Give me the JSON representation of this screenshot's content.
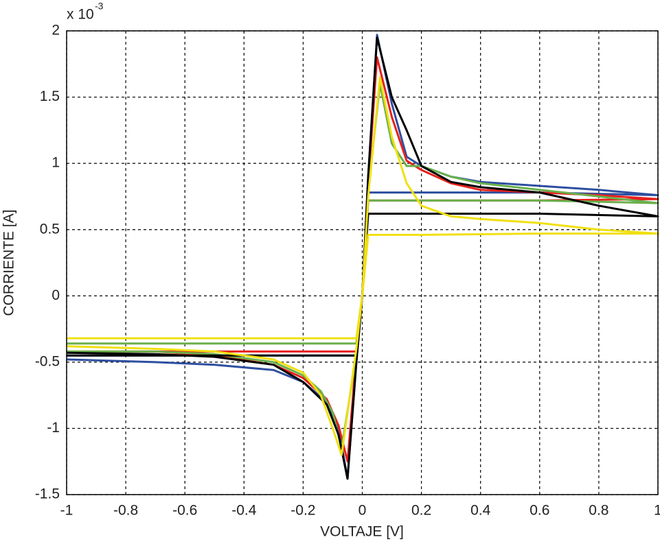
{
  "chart_data": {
    "type": "line",
    "xlabel": "VOLTAJE [V]",
    "ylabel": "CORRIENTE [A]",
    "y_multiplier": "x 10",
    "y_multiplier_exponent": "-3",
    "xlim": [
      -1,
      1
    ],
    "ylim": [
      -1.5,
      2
    ],
    "xticks": [
      -1,
      -0.8,
      -0.6,
      -0.4,
      -0.2,
      0,
      0.2,
      0.4,
      0.6,
      0.8,
      1
    ],
    "yticks": [
      -1.5,
      -1,
      -0.5,
      0,
      0.5,
      1,
      1.5,
      2
    ],
    "grid": true,
    "series": [
      {
        "color": "#2d4fa0",
        "x": [
          -1,
          -0.02,
          0.0,
          0.02,
          0.05,
          0.1,
          0.15,
          0.2,
          0.3,
          0.4,
          0.6,
          0.8,
          1.0,
          0.6,
          0.2,
          0.02,
          0.0,
          -0.02,
          -0.05,
          -0.08,
          -0.12,
          -0.2,
          -0.3,
          -0.5,
          -0.7,
          -1.0
        ],
        "values": [
          -0.45,
          -0.45,
          0.0,
          0.9,
          1.97,
          1.45,
          1.05,
          0.98,
          0.9,
          0.86,
          0.83,
          0.8,
          0.76,
          0.78,
          0.78,
          0.78,
          0.0,
          -0.5,
          -1.38,
          -1.0,
          -0.8,
          -0.65,
          -0.56,
          -0.52,
          -0.5,
          -0.48
        ]
      },
      {
        "color": "#e8201c",
        "x": [
          -1,
          -0.02,
          0.0,
          0.02,
          0.05,
          0.1,
          0.15,
          0.2,
          0.3,
          0.4,
          0.6,
          0.8,
          1.0,
          0.6,
          0.2,
          0.02,
          0.0,
          -0.02,
          -0.05,
          -0.08,
          -0.12,
          -0.2,
          -0.3,
          -0.5,
          -0.7,
          -1.0
        ],
        "values": [
          -0.42,
          -0.42,
          0.0,
          0.85,
          1.8,
          1.35,
          1.02,
          0.95,
          0.85,
          0.8,
          0.78,
          0.76,
          0.73,
          0.72,
          0.72,
          0.72,
          0.0,
          -0.45,
          -1.25,
          -0.98,
          -0.78,
          -0.62,
          -0.52,
          -0.45,
          -0.42,
          -0.42
        ]
      },
      {
        "color": "#6ab04c",
        "x": [
          -1,
          -0.02,
          0.0,
          0.02,
          0.06,
          0.1,
          0.15,
          0.2,
          0.3,
          0.4,
          0.6,
          0.8,
          1.0,
          0.6,
          0.2,
          0.02,
          0.0,
          -0.02,
          -0.07,
          -0.1,
          -0.14,
          -0.2,
          -0.3,
          -0.5,
          -0.7,
          -1.0
        ],
        "values": [
          -0.36,
          -0.36,
          0.0,
          0.8,
          1.6,
          1.15,
          0.98,
          0.98,
          0.9,
          0.85,
          0.8,
          0.75,
          0.7,
          0.72,
          0.72,
          0.72,
          0.0,
          -0.45,
          -1.15,
          -0.88,
          -0.72,
          -0.6,
          -0.5,
          -0.44,
          -0.42,
          -0.42
        ]
      },
      {
        "color": "#000000",
        "x": [
          -1,
          -0.02,
          0.0,
          0.02,
          0.05,
          0.1,
          0.15,
          0.2,
          0.3,
          0.4,
          0.6,
          0.8,
          1.0,
          0.6,
          0.2,
          0.02,
          0.0,
          -0.02,
          -0.05,
          -0.08,
          -0.12,
          -0.2,
          -0.3,
          -0.5,
          -0.7,
          -1.0
        ],
        "values": [
          -0.45,
          -0.45,
          0.0,
          0.9,
          1.95,
          1.5,
          1.25,
          0.98,
          0.86,
          0.82,
          0.78,
          0.68,
          0.6,
          0.62,
          0.62,
          0.62,
          0.0,
          -0.5,
          -1.38,
          -1.05,
          -0.82,
          -0.65,
          -0.52,
          -0.46,
          -0.44,
          -0.43
        ]
      },
      {
        "color": "#f0e010",
        "x": [
          -1,
          -0.02,
          0.0,
          0.02,
          0.06,
          0.1,
          0.15,
          0.2,
          0.3,
          0.4,
          0.6,
          0.8,
          1.0,
          0.6,
          0.2,
          0.02,
          0.0,
          -0.02,
          -0.07,
          -0.1,
          -0.14,
          -0.2,
          -0.3,
          -0.5,
          -0.7,
          -1.0
        ],
        "values": [
          -0.32,
          -0.32,
          0.0,
          0.75,
          1.65,
          1.2,
          0.85,
          0.68,
          0.6,
          0.58,
          0.55,
          0.5,
          0.47,
          0.47,
          0.46,
          0.46,
          0.0,
          -0.4,
          -1.2,
          -1.0,
          -0.75,
          -0.58,
          -0.48,
          -0.42,
          -0.4,
          -0.38
        ]
      }
    ]
  }
}
